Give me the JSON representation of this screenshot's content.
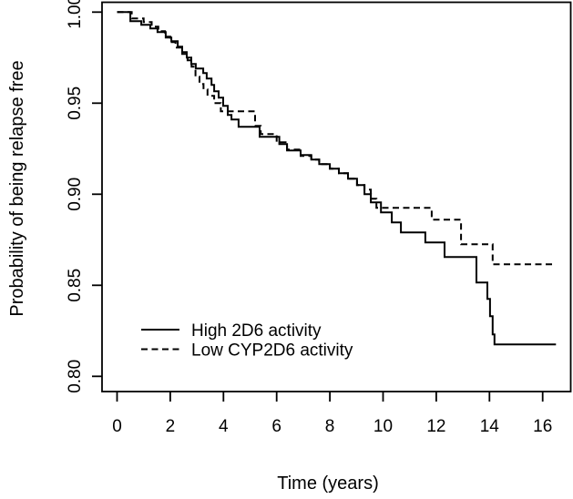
{
  "figure": {
    "background_color": "#ffffff",
    "line_color": "#000000"
  },
  "legend": {
    "items": [
      {
        "label": "High 2D6 activity",
        "line_style": "solid"
      },
      {
        "label": "Low CYP2D6 activity",
        "line_style": "dashed"
      }
    ]
  },
  "chart_data": {
    "type": "line",
    "subtype": "kaplan-meier-step",
    "title": "",
    "xlabel": "Time (years)",
    "ylabel": "Probability of being relapse free",
    "xlim": [
      0,
      16
    ],
    "ylim": [
      0.8,
      1.0
    ],
    "grid": false,
    "legend_position": "bottom-left-inside",
    "x_ticks": [
      0,
      2,
      4,
      6,
      8,
      10,
      12,
      14,
      16
    ],
    "y_ticks": [
      0.8,
      0.85,
      0.9,
      0.95,
      1.0
    ],
    "y_tick_labels": [
      "0.80",
      "0.85",
      "0.90",
      "0.95",
      "1.00"
    ],
    "series": [
      {
        "name": "High 2D6 activity",
        "line_style": "solid",
        "color": "#000000",
        "end_time": 16.5,
        "points": [
          [
            0,
            1.0
          ],
          [
            0.5,
            0.995
          ],
          [
            0.91,
            0.993
          ],
          [
            1.25,
            0.991
          ],
          [
            1.52,
            0.989
          ],
          [
            1.83,
            0.986
          ],
          [
            2.04,
            0.984
          ],
          [
            2.28,
            0.981
          ],
          [
            2.45,
            0.978
          ],
          [
            2.62,
            0.975
          ],
          [
            2.79,
            0.9715
          ],
          [
            2.96,
            0.969
          ],
          [
            3.24,
            0.9665
          ],
          [
            3.37,
            0.9635
          ],
          [
            3.55,
            0.96
          ],
          [
            3.65,
            0.9565
          ],
          [
            3.82,
            0.953
          ],
          [
            3.99,
            0.9485
          ],
          [
            4.16,
            0.9435
          ],
          [
            4.3,
            0.941
          ],
          [
            4.57,
            0.937
          ],
          [
            5.36,
            0.9315
          ],
          [
            6.1,
            0.9275
          ],
          [
            6.39,
            0.924
          ],
          [
            6.9,
            0.9215
          ],
          [
            7.3,
            0.919
          ],
          [
            7.6,
            0.9165
          ],
          [
            8.0,
            0.914
          ],
          [
            8.34,
            0.9115
          ],
          [
            8.68,
            0.9085
          ],
          [
            9.02,
            0.905
          ],
          [
            9.3,
            0.9
          ],
          [
            9.54,
            0.8955
          ],
          [
            9.92,
            0.89
          ],
          [
            10.33,
            0.8845
          ],
          [
            10.67,
            0.879
          ],
          [
            11.59,
            0.8735
          ],
          [
            12.31,
            0.8655
          ],
          [
            13.51,
            0.8515
          ],
          [
            13.92,
            0.8425
          ],
          [
            14.02,
            0.833
          ],
          [
            14.12,
            0.823
          ],
          [
            14.19,
            0.8175
          ]
        ]
      },
      {
        "name": "Low CYP2D6 activity",
        "line_style": "dashed",
        "color": "#000000",
        "end_time": 16.38,
        "points": [
          [
            0,
            1.0
          ],
          [
            0.55,
            0.9965
          ],
          [
            1.0,
            0.9945
          ],
          [
            1.3,
            0.992
          ],
          [
            1.55,
            0.9895
          ],
          [
            1.8,
            0.9865
          ],
          [
            2.0,
            0.9835
          ],
          [
            2.2,
            0.9805
          ],
          [
            2.45,
            0.977
          ],
          [
            2.65,
            0.9735
          ],
          [
            2.8,
            0.97
          ],
          [
            2.95,
            0.9645
          ],
          [
            3.1,
            0.9605
          ],
          [
            3.25,
            0.9575
          ],
          [
            3.4,
            0.954
          ],
          [
            3.65,
            0.95
          ],
          [
            3.9,
            0.9455
          ],
          [
            5.19,
            0.9375
          ],
          [
            5.4,
            0.933
          ],
          [
            6.0,
            0.9285
          ],
          [
            6.39,
            0.9245
          ],
          [
            6.9,
            0.921
          ],
          [
            7.3,
            0.919
          ],
          [
            7.6,
            0.9165
          ],
          [
            8.0,
            0.914
          ],
          [
            8.34,
            0.9115
          ],
          [
            8.68,
            0.9085
          ],
          [
            9.02,
            0.905
          ],
          [
            9.3,
            0.9025
          ],
          [
            9.54,
            0.8975
          ],
          [
            9.75,
            0.8925
          ],
          [
            11.83,
            0.886
          ],
          [
            12.93,
            0.8725
          ],
          [
            14.12,
            0.8615
          ]
        ]
      }
    ]
  }
}
